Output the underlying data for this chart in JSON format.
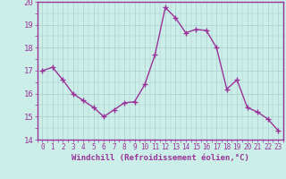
{
  "x": [
    0,
    1,
    2,
    3,
    4,
    5,
    6,
    7,
    8,
    9,
    10,
    11,
    12,
    13,
    14,
    15,
    16,
    17,
    18,
    19,
    20,
    21,
    22,
    23
  ],
  "y": [
    17.0,
    17.15,
    16.6,
    16.0,
    15.7,
    15.4,
    15.0,
    15.3,
    15.6,
    15.65,
    16.4,
    17.7,
    19.75,
    19.3,
    18.65,
    18.8,
    18.75,
    18.0,
    16.2,
    16.6,
    15.4,
    15.2,
    14.9,
    14.4
  ],
  "line_color": "#993399",
  "marker": "D",
  "marker_size": 2,
  "bg_color": "#cceee8",
  "grid_color": "#aacccc",
  "xlabel": "Windchill (Refroidissement éolien,°C)",
  "xlabel_color": "#993399",
  "tick_color": "#993399",
  "ylim": [
    14,
    20
  ],
  "xlim": [
    -0.5,
    23.5
  ],
  "yticks": [
    14,
    15,
    16,
    17,
    18,
    19,
    20
  ],
  "xticks": [
    0,
    1,
    2,
    3,
    4,
    5,
    6,
    7,
    8,
    9,
    10,
    11,
    12,
    13,
    14,
    15,
    16,
    17,
    18,
    19,
    20,
    21,
    22,
    23
  ],
  "xtick_labels": [
    "0",
    "1",
    "2",
    "3",
    "4",
    "5",
    "6",
    "7",
    "8",
    "9",
    "10",
    "11",
    "12",
    "13",
    "14",
    "15",
    "16",
    "17",
    "18",
    "19",
    "20",
    "21",
    "22",
    "23"
  ],
  "line_width": 1.0,
  "tick_fontsize": 5.5,
  "ytick_fontsize": 6.5,
  "xlabel_fontsize": 6.5
}
